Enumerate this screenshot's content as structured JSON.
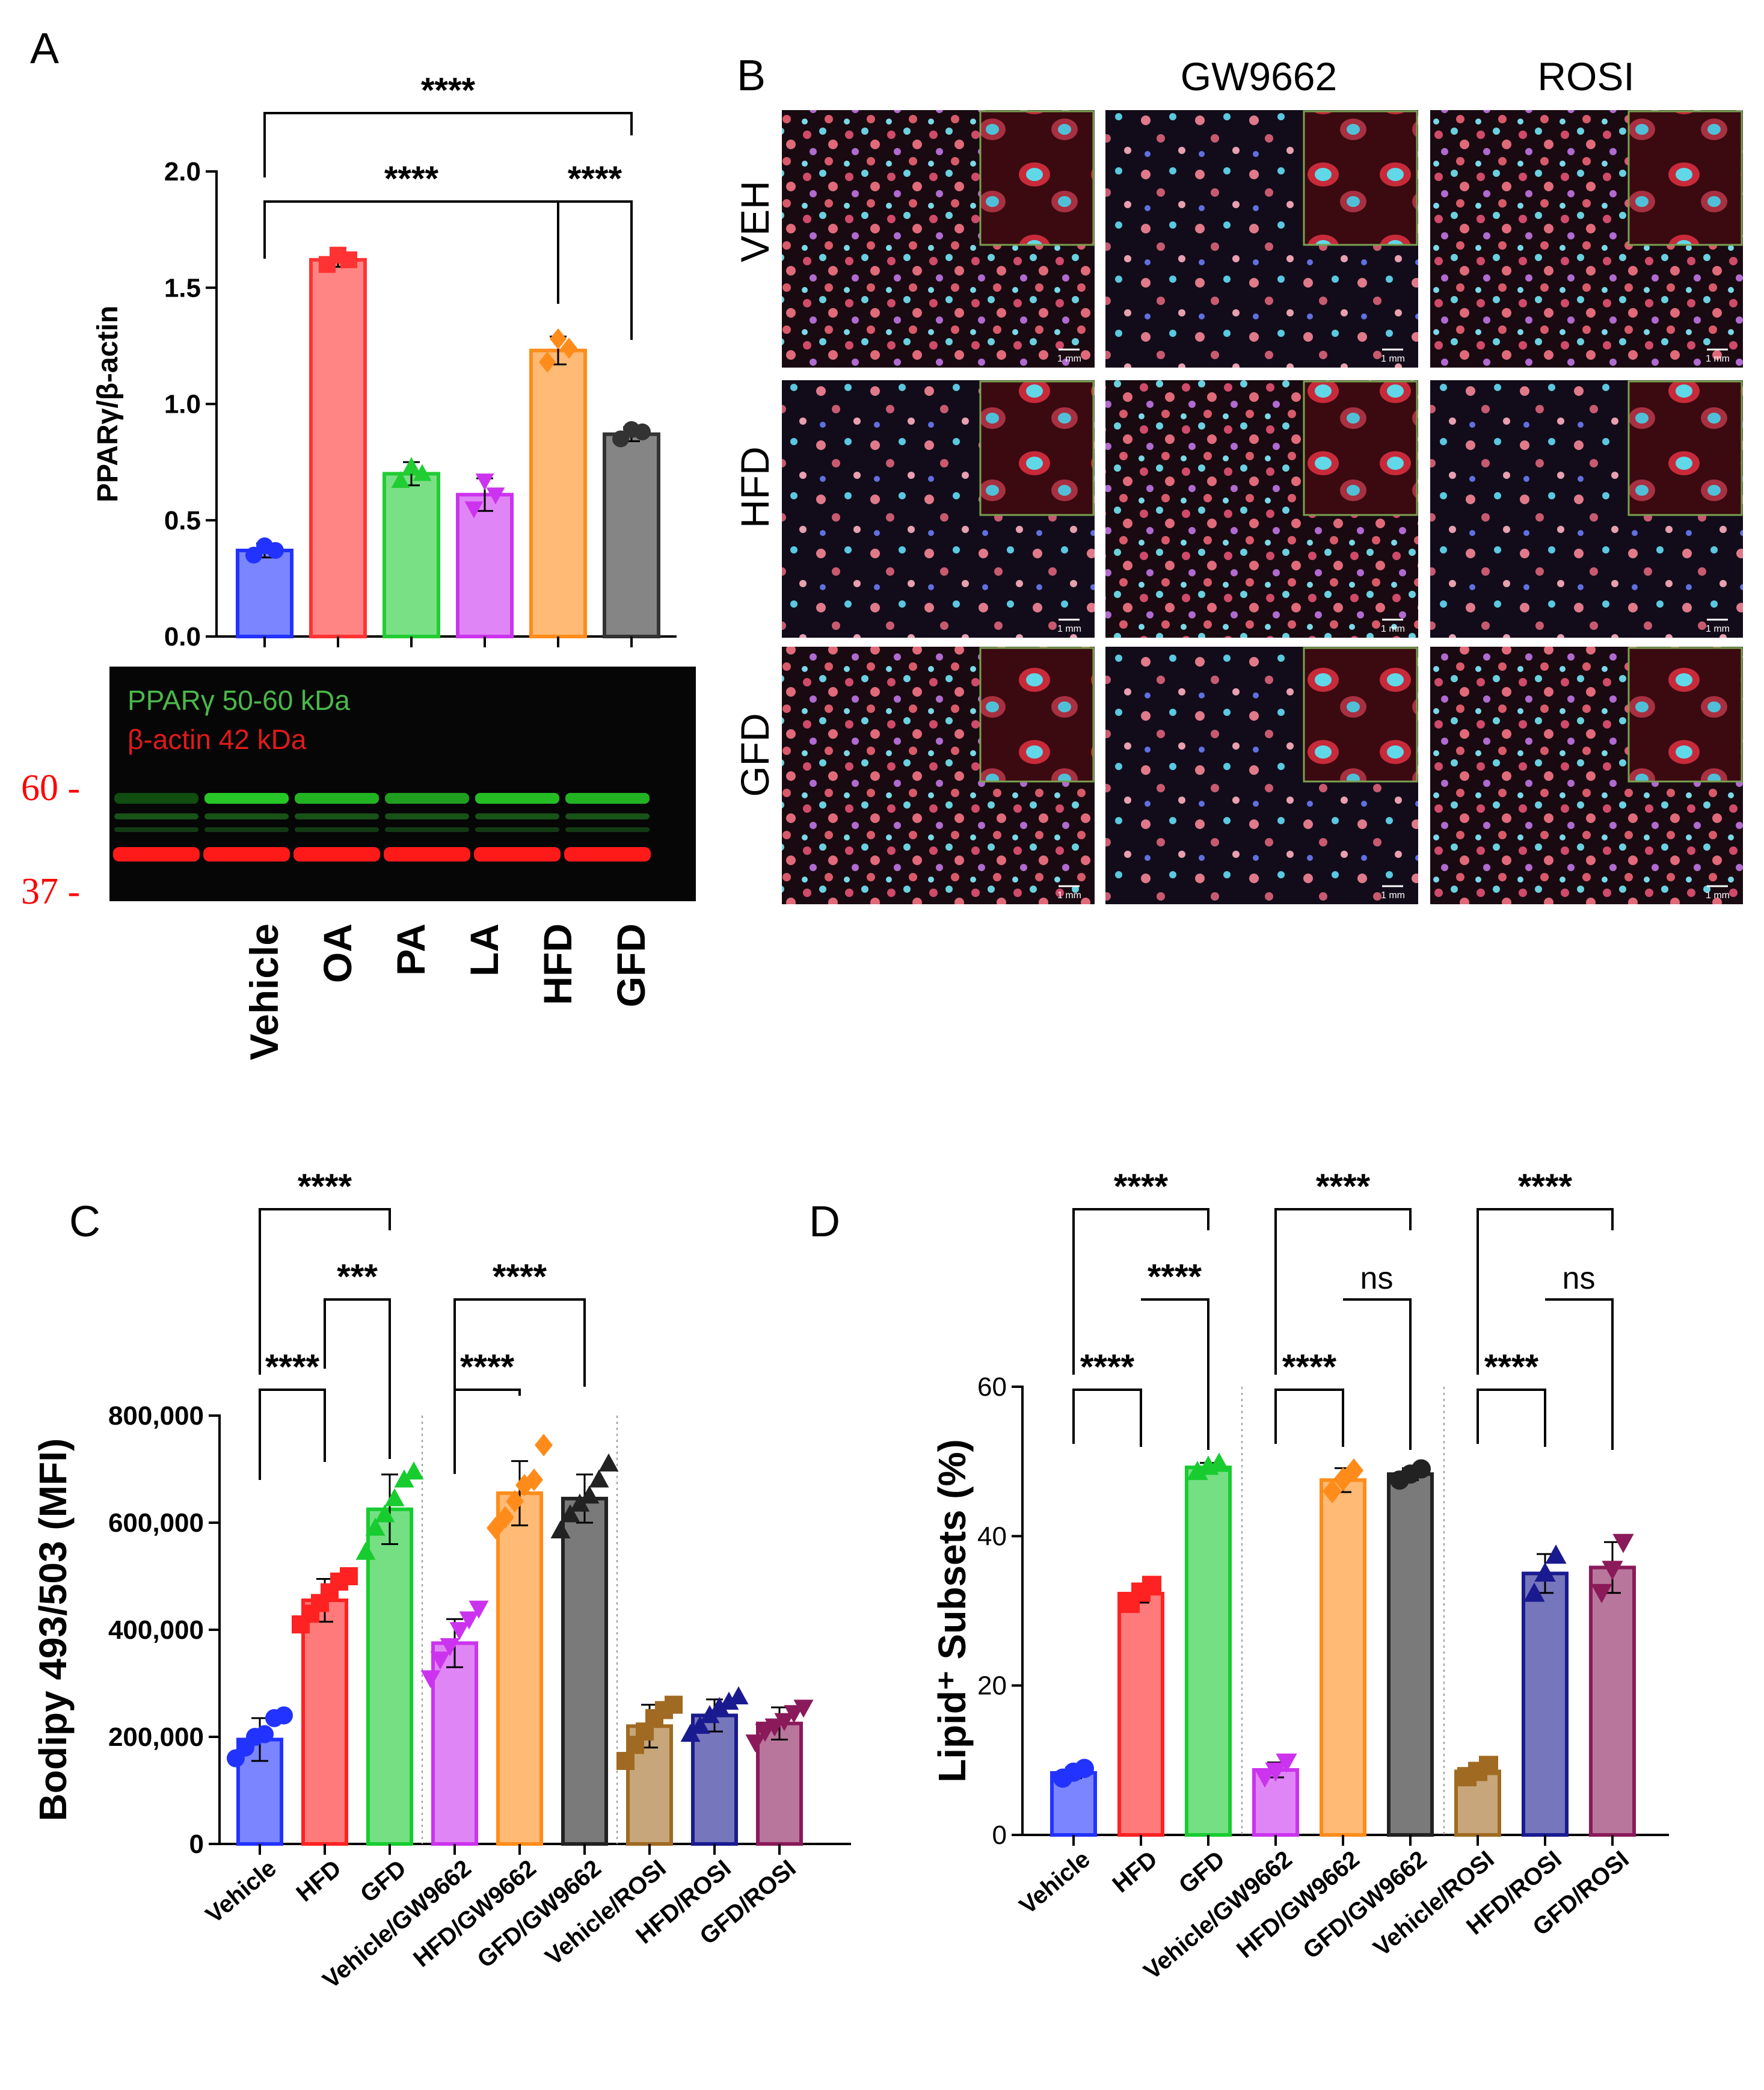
{
  "colors": {
    "Vehicle": "#2233ff",
    "OA": "#ff3333",
    "PA": "#22cc33",
    "LA": "#cc33ee",
    "HFD": "#ff8c1a",
    "GFD": "#333333",
    "Vehicle/GW9662": "#cc33ee",
    "HFD/GW9662": "#ff8c1a",
    "GFD/GW9662": "#222222",
    "Vehicle/ROSI": "#a06a22",
    "HFD/ROSI": "#1a1a90",
    "GFD/ROSI": "#8a1a5a",
    "HFD_C": "#ff2222",
    "GFD_C": "#18cc30"
  },
  "panelA": {
    "label": "A",
    "blot": {
      "line1": "PPARγ 50-60 kDa",
      "line2": "β-actin 42 kDa",
      "marker_top": "60 -",
      "marker_bottom": "37 -"
    }
  },
  "panelB": {
    "label": "B",
    "columns": [
      "",
      "GW9662",
      "ROSI"
    ],
    "rows": [
      "VEH",
      "HFD",
      "GFD"
    ],
    "scale_bar": "1 mm"
  },
  "panelC": {
    "label": "C"
  },
  "panelD": {
    "label": "D"
  },
  "chart_data": [
    {
      "id": "A",
      "type": "bar",
      "ylabel": "PPARγ/β-actin",
      "ylim": [
        0,
        2.0
      ],
      "yticks": [
        0.0,
        0.5,
        1.0,
        1.5,
        2.0
      ],
      "ytick_labels": [
        "0.0",
        "0.5",
        "1.0",
        "1.5",
        "2.0"
      ],
      "categories": [
        "Vehicle",
        "OA",
        "PA",
        "LA",
        "HFD",
        "GFD"
      ],
      "values": [
        0.37,
        1.62,
        0.7,
        0.61,
        1.23,
        0.87
      ],
      "errors": [
        0.03,
        0.03,
        0.05,
        0.07,
        0.06,
        0.03
      ],
      "points": [
        [
          0.35,
          0.39,
          0.37
        ],
        [
          1.6,
          1.64,
          1.62
        ],
        [
          0.67,
          0.73,
          0.7
        ],
        [
          0.55,
          0.67,
          0.61
        ],
        [
          1.18,
          1.28,
          1.24
        ],
        [
          0.85,
          0.89,
          0.88
        ]
      ],
      "markers": [
        "circle",
        "square",
        "triangle",
        "triangle-down",
        "diamond",
        "circle"
      ],
      "brackets": [
        {
          "from": 0,
          "to": 5,
          "label": "****"
        },
        {
          "from": 0,
          "to": 4,
          "label": "****"
        },
        {
          "from": 4,
          "to": 5,
          "label": "****"
        }
      ]
    },
    {
      "id": "C",
      "type": "bar",
      "ylabel": "Bodipy 493/503 (MFI)",
      "ylim": [
        0,
        800000
      ],
      "yticks": [
        0,
        200000,
        400000,
        600000,
        800000
      ],
      "ytick_labels": [
        "0",
        "200,000",
        "400,000",
        "600,000",
        "800,000"
      ],
      "categories": [
        "Vehicle",
        "HFD",
        "GFD",
        "Vehicle/GW9662",
        "HFD/GW9662",
        "GFD/GW9662",
        "Vehicle/ROSI",
        "HFD/ROSI",
        "GFD/ROSI"
      ],
      "values": [
        195000,
        455000,
        625000,
        375000,
        655000,
        645000,
        220000,
        240000,
        225000
      ],
      "errors": [
        40000,
        40000,
        65000,
        45000,
        60000,
        45000,
        40000,
        30000,
        30000
      ],
      "points": [
        [
          160000,
          180000,
          200000,
          205000,
          235000,
          240000
        ],
        [
          410000,
          430000,
          450000,
          470000,
          490000,
          500000
        ],
        [
          545000,
          590000,
          615000,
          645000,
          680000,
          695000
        ],
        [
          310000,
          345000,
          370000,
          400000,
          420000,
          440000
        ],
        [
          590000,
          610000,
          640000,
          670000,
          680000,
          745000
        ],
        [
          585000,
          615000,
          635000,
          650000,
          680000,
          710000
        ],
        [
          155000,
          185000,
          210000,
          235000,
          250000,
          260000
        ],
        [
          205000,
          220000,
          240000,
          255000,
          265000,
          275000
        ],
        [
          190000,
          210000,
          220000,
          230000,
          245000,
          255000
        ]
      ],
      "markers": [
        "circle",
        "square",
        "triangle",
        "triangle-down",
        "diamond",
        "triangle",
        "square",
        "triangle",
        "triangle-down"
      ],
      "separators_after": [
        2,
        5
      ],
      "brackets": [
        {
          "from": 0,
          "to": 2,
          "label": "****"
        },
        {
          "from": 1,
          "to": 2,
          "label": "***"
        },
        {
          "from": 0,
          "to": 1,
          "label": "****"
        },
        {
          "from": 3,
          "to": 5,
          "label": "****"
        },
        {
          "from": 3,
          "to": 4,
          "label": "****"
        }
      ]
    },
    {
      "id": "D",
      "type": "bar",
      "ylabel": "Lipid⁺ Subsets (%)",
      "ylim": [
        0,
        60
      ],
      "yticks": [
        0,
        20,
        40,
        60
      ],
      "ytick_labels": [
        "0",
        "20",
        "40",
        "60"
      ],
      "categories": [
        "Vehicle",
        "HFD",
        "GFD",
        "Vehicle/GW9662",
        "HFD/GW9662",
        "GFD/GW9662",
        "Vehicle/ROSI",
        "HFD/ROSI",
        "GFD/ROSI"
      ],
      "values": [
        8.3,
        32.3,
        49.2,
        8.7,
        47.5,
        48.3,
        8.5,
        35.0,
        35.8
      ],
      "errors": [
        0.7,
        1.2,
        0.6,
        1.0,
        1.6,
        0.8,
        0.8,
        2.6,
        3.4
      ],
      "points": [
        [
          7.6,
          8.4,
          8.9
        ],
        [
          31.0,
          32.5,
          33.4
        ],
        [
          48.6,
          49.3,
          49.7
        ],
        [
          7.8,
          8.6,
          9.8
        ],
        [
          46.0,
          47.6,
          48.8
        ],
        [
          47.5,
          48.3,
          49.0
        ],
        [
          7.8,
          8.5,
          9.3
        ],
        [
          32.3,
          35.0,
          37.4
        ],
        [
          32.5,
          35.6,
          39.2
        ]
      ],
      "markers": [
        "circle",
        "square",
        "triangle",
        "triangle-down",
        "diamond",
        "circle",
        "square",
        "triangle",
        "triangle-down"
      ],
      "separators_after": [
        2,
        5
      ],
      "brackets": [
        {
          "from": 0,
          "to": 2,
          "label": "****"
        },
        {
          "from": 1,
          "to": 2,
          "label": "****"
        },
        {
          "from": 0,
          "to": 1,
          "label": "****"
        },
        {
          "from": 3,
          "to": 5,
          "label": "****"
        },
        {
          "from": 4,
          "to": 5,
          "label": "ns"
        },
        {
          "from": 3,
          "to": 4,
          "label": "****"
        },
        {
          "from": 6,
          "to": 8,
          "label": "****"
        },
        {
          "from": 7,
          "to": 8,
          "label": "ns"
        },
        {
          "from": 6,
          "to": 7,
          "label": "****"
        }
      ]
    }
  ]
}
